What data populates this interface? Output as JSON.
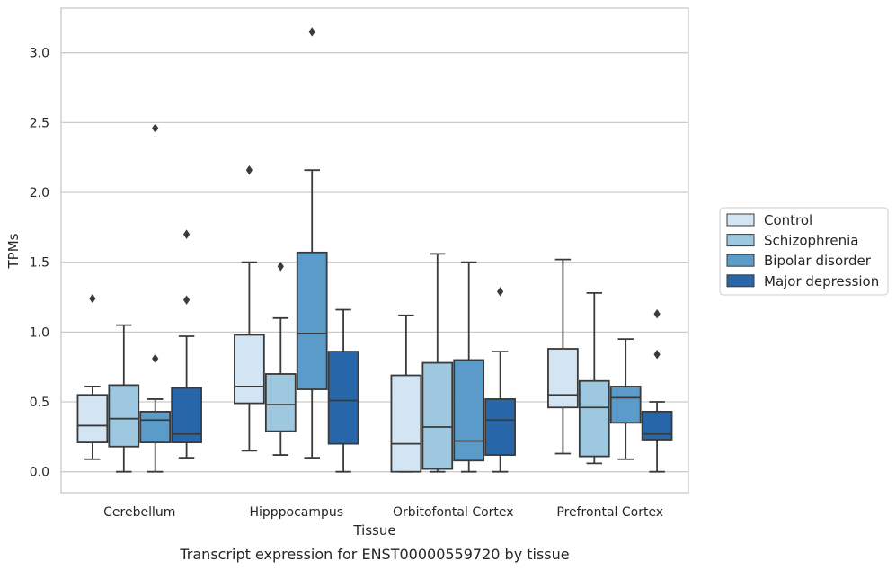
{
  "caption": "Transcript expression for ENST00000559720 by tissue",
  "chart_data": {
    "type": "box",
    "xlabel": "Tissue",
    "ylabel": "TPMs",
    "ylim": [
      -0.15,
      3.32
    ],
    "yticks": [
      "0.0",
      "0.5",
      "1.0",
      "1.5",
      "2.0",
      "2.5",
      "3.0"
    ],
    "grid": "horizontal",
    "legend_position": "right",
    "categories": [
      "Cerebellum",
      "Hipppocampus",
      "Orbitofontal Cortex",
      "Prefrontal Cortex"
    ],
    "series": [
      {
        "name": "Control",
        "color": "#d3e4f3",
        "boxes": [
          {
            "whislo": 0.09,
            "q1": 0.21,
            "med": 0.33,
            "q3": 0.55,
            "whishi": 0.61,
            "fliers": [
              1.24
            ]
          },
          {
            "whislo": 0.15,
            "q1": 0.49,
            "med": 0.61,
            "q3": 0.98,
            "whishi": 1.5,
            "fliers": [
              2.16
            ]
          },
          {
            "whislo": 0.0,
            "q1": 0.0,
            "med": 0.2,
            "q3": 0.69,
            "whishi": 1.12,
            "fliers": []
          },
          {
            "whislo": 0.13,
            "q1": 0.46,
            "med": 0.55,
            "q3": 0.88,
            "whishi": 1.52,
            "fliers": []
          }
        ]
      },
      {
        "name": "Schizophrenia",
        "color": "#9dc8e0",
        "boxes": [
          {
            "whislo": 0.0,
            "q1": 0.18,
            "med": 0.38,
            "q3": 0.62,
            "whishi": 1.05,
            "fliers": []
          },
          {
            "whislo": 0.12,
            "q1": 0.29,
            "med": 0.48,
            "q3": 0.7,
            "whishi": 1.1,
            "fliers": [
              1.47
            ]
          },
          {
            "whislo": 0.0,
            "q1": 0.02,
            "med": 0.32,
            "q3": 0.78,
            "whishi": 1.56,
            "fliers": []
          },
          {
            "whislo": 0.06,
            "q1": 0.11,
            "med": 0.46,
            "q3": 0.65,
            "whishi": 1.28,
            "fliers": []
          }
        ]
      },
      {
        "name": "Bipolar disorder",
        "color": "#5a9bc9",
        "boxes": [
          {
            "whislo": 0.0,
            "q1": 0.21,
            "med": 0.37,
            "q3": 0.43,
            "whishi": 0.52,
            "fliers": [
              0.81,
              2.46
            ]
          },
          {
            "whislo": 0.1,
            "q1": 0.59,
            "med": 0.99,
            "q3": 1.57,
            "whishi": 2.16,
            "fliers": [
              3.15
            ]
          },
          {
            "whislo": 0.0,
            "q1": 0.08,
            "med": 0.22,
            "q3": 0.8,
            "whishi": 1.5,
            "fliers": []
          },
          {
            "whislo": 0.09,
            "q1": 0.35,
            "med": 0.53,
            "q3": 0.61,
            "whishi": 0.95,
            "fliers": []
          }
        ]
      },
      {
        "name": "Major depression",
        "color": "#2767a9",
        "boxes": [
          {
            "whislo": 0.1,
            "q1": 0.21,
            "med": 0.27,
            "q3": 0.6,
            "whishi": 0.97,
            "fliers": [
              1.23,
              1.7
            ]
          },
          {
            "whislo": 0.0,
            "q1": 0.2,
            "med": 0.51,
            "q3": 0.86,
            "whishi": 1.16,
            "fliers": []
          },
          {
            "whislo": 0.0,
            "q1": 0.12,
            "med": 0.37,
            "q3": 0.52,
            "whishi": 0.86,
            "fliers": [
              1.29
            ]
          },
          {
            "whislo": 0.0,
            "q1": 0.23,
            "med": 0.27,
            "q3": 0.43,
            "whishi": 0.5,
            "fliers": [
              0.84,
              1.13
            ]
          }
        ]
      }
    ]
  }
}
